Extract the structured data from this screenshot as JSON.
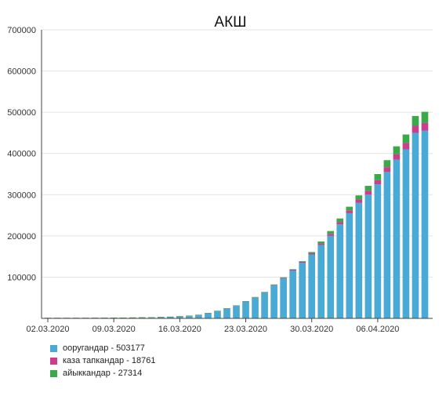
{
  "chart_data": {
    "type": "bar",
    "stacked": true,
    "title": "АКШ",
    "xlabel": "",
    "ylabel": "",
    "ylim": [
      0,
      700000
    ],
    "y_ticks": [
      700000,
      600000,
      500000,
      400000,
      300000,
      200000,
      100000
    ],
    "grid": true,
    "legend_position": "bottom-left",
    "categories": [
      "02.03.2020",
      "03.03.2020",
      "04.03.2020",
      "05.03.2020",
      "06.03.2020",
      "07.03.2020",
      "08.03.2020",
      "09.03.2020",
      "10.03.2020",
      "11.03.2020",
      "12.03.2020",
      "13.03.2020",
      "14.03.2020",
      "15.03.2020",
      "16.03.2020",
      "17.03.2020",
      "18.03.2020",
      "19.03.2020",
      "20.03.2020",
      "21.03.2020",
      "22.03.2020",
      "23.03.2020",
      "24.03.2020",
      "25.03.2020",
      "26.03.2020",
      "27.03.2020",
      "28.03.2020",
      "29.03.2020",
      "30.03.2020",
      "31.03.2020",
      "01.04.2020",
      "02.04.2020",
      "03.04.2020",
      "04.04.2020",
      "05.04.2020",
      "06.04.2020",
      "07.04.2020",
      "08.04.2020",
      "09.04.2020",
      "10.04.2020",
      "11.04.2020"
    ],
    "x_tick_labels": [
      "02.03.2020",
      "09.03.2020",
      "16.03.2020",
      "23.03.2020",
      "30.03.2020",
      "06.04.2020"
    ],
    "series": [
      {
        "name": "ооругандар - 503177",
        "color": "#4aaad6",
        "values": [
          80,
          100,
          130,
          170,
          220,
          320,
          420,
          580,
          760,
          1000,
          1300,
          1700,
          2200,
          2900,
          4000,
          5500,
          7500,
          12000,
          17000,
          23000,
          30000,
          40000,
          50000,
          62000,
          80000,
          97000,
          116000,
          135000,
          155000,
          178000,
          200000,
          228000,
          255000,
          280000,
          300000,
          325000,
          355000,
          385000,
          410000,
          450000,
          455000
        ]
      },
      {
        "name": "каза тапкандар - 18761",
        "color": "#cc3d8e",
        "values": [
          1,
          2,
          3,
          4,
          5,
          7,
          9,
          12,
          15,
          20,
          25,
          30,
          40,
          50,
          60,
          80,
          100,
          150,
          200,
          280,
          360,
          500,
          650,
          850,
          1150,
          1500,
          2000,
          2400,
          2900,
          3500,
          4800,
          5800,
          6900,
          8300,
          9400,
          10000,
          11800,
          13300,
          15000,
          17000,
          18761
        ]
      },
      {
        "name": "айыккандар - 27314",
        "color": "#3ba94a",
        "values": [
          10,
          10,
          10,
          10,
          10,
          15,
          15,
          15,
          15,
          15,
          15,
          20,
          30,
          50,
          100,
          100,
          110,
          120,
          150,
          170,
          180,
          300,
          350,
          400,
          600,
          900,
          1200,
          1500,
          3000,
          5000,
          7000,
          8500,
          9000,
          10000,
          12000,
          15000,
          17000,
          19000,
          21000,
          24000,
          27314
        ]
      }
    ]
  }
}
